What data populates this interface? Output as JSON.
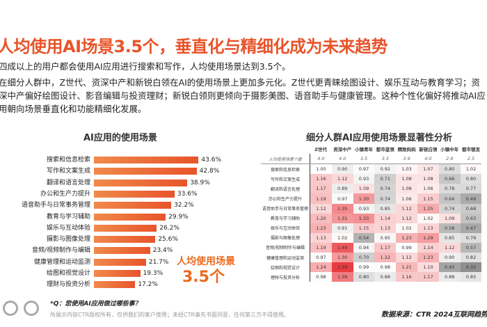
{
  "title": "人均使用AI场景3.5个，垂直化与精细化成为未来趋势",
  "paragraphs": [
    "四成以上的用户都会使用AI应用进行搜索和写作，人均使用场景达到3.5个。",
    "在细分人群中，Z世代、资深中产和新锐白领在AI的使用场景上更加多元化。Z世代更青睐绘图设计、娱乐互动与教育学习；资深中产偏好绘图设计、影音编辑与投资理财；新锐白领则更倾向于摄影美图、语音助手与健康管理。这种个性化偏好将推动AI应用朝向场景垂直化和功能精细化发展。"
  ],
  "callout": {
    "line1": "人均使用场景",
    "line2": "3.5个"
  },
  "chart_data": [
    {
      "type": "bar",
      "orientation": "horizontal",
      "title": "AI应用的使用场景",
      "categories": [
        "搜索和信息检索",
        "写作和文案生成",
        "翻译和语言处理",
        "办公和生产力提升",
        "语音助手与日常事务管理",
        "教育与学习辅助",
        "娱乐与互动体验",
        "摄影与图像处理",
        "音频/视频制作与编辑",
        "健康管理和运动监测",
        "绘图和视觉设计",
        "理财与投资分析"
      ],
      "values": [
        43.6,
        42.8,
        38.9,
        33.6,
        32.2,
        29.9,
        26.2,
        25.6,
        23.4,
        21.7,
        19.3,
        17.2
      ],
      "value_labels": [
        "43.6%",
        "42.8%",
        "38.9%",
        "33.6%",
        "32.2%",
        "29.9%",
        "26.2%",
        "25.6%",
        "23.4%",
        "21.7%",
        "19.3%",
        "17.2%"
      ],
      "color": "#e8542a"
    },
    {
      "type": "heatmap",
      "title": "细分人群AI应用使用场景显著性分析",
      "columns": [
        "Z世代",
        "资深中产",
        "小镇青年",
        "都市蓝领",
        "精致妈妈",
        "新锐白领",
        "小镇中年",
        "都市银发"
      ],
      "summary_row": {
        "label": "人均使用场景个数",
        "values": [
          "4.0",
          "4.0",
          "3.5",
          "3.3",
          "3.9",
          "4.0",
          "2.9",
          "2.5"
        ]
      },
      "rows": [
        "搜索和信息检索",
        "写作和文案生成",
        "翻译和语言处理",
        "办公和生产力提升",
        "语音助手与日常事务管理",
        "教育与学习辅助",
        "娱乐与互动体验",
        "摄影与图像处理",
        "音频/视频制作与编辑",
        "健康管理和运动监测",
        "绘图和视觉设计",
        "理财与投资分析"
      ],
      "values": [
        [
          1.0,
          0.9,
          0.97,
          0.92,
          1.03,
          1.07,
          0.8,
          1.02
        ],
        [
          1.16,
          1.12,
          0.93,
          0.71,
          1.08,
          1.08,
          0.66,
          0.8
        ],
        [
          1.17,
          0.89,
          1.09,
          0.74,
          1.08,
          1.06,
          0.78,
          0.77
        ],
        [
          1.19,
          0.97,
          1.3,
          0.74,
          1.06,
          1.15,
          0.64,
          0.49
        ],
        [
          1.12,
          1.35,
          0.93,
          0.85,
          1.12,
          1.25,
          0.74,
          0.68
        ],
        [
          1.2,
          1.31,
          1.33,
          1.14,
          1.12,
          1.02,
          1.09,
          0.63
        ],
        [
          1.23,
          0.91,
          1.15,
          1.13,
          1.02,
          1.13,
          0.58,
          0.47
        ],
        [
          1.13,
          1.02,
          0.54,
          0.95,
          1.23,
          1.29,
          0.85,
          0.79
        ],
        [
          1.19,
          1.49,
          0.94,
          1.17,
          0.99,
          1.14,
          1.12,
          0.57
        ],
        [
          0.97,
          1.3,
          0.7,
          1.22,
          1.12,
          1.23,
          0.9,
          0.82
        ],
        [
          1.24,
          1.58,
          0.99,
          0.98,
          1.21,
          1.1,
          0.45,
          0.32
        ],
        [
          0.98,
          1.39,
          0.8,
          0.88,
          1.16,
          1.17,
          0.88,
          0.85
        ]
      ],
      "colors": {
        "high": "#e8353a",
        "low": "#8c8c8c",
        "neutral": "#ffffff"
      }
    }
  ],
  "footer": {
    "question": "*Q：您使用AI应用做过哪些事？",
    "copyright": "所展示内容CTR版权所有，仅供我们的客户使用；未经CTR事先书面同意，任何第三方不得使用。",
    "source": "数据来源：CTR 2024互联网趋势洞察i"
  }
}
